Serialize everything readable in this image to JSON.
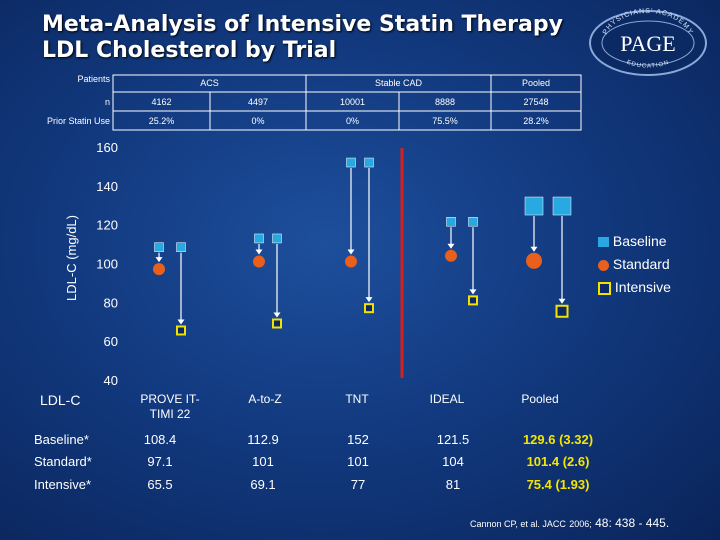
{
  "title_line1": "Meta-Analysis of Intensive Statin Therapy",
  "title_line2": "LDL Cholesterol by Trial",
  "logo": {
    "top_text": "PHYSICIANS' ACADEMY",
    "center_text": "PAGE",
    "bottom_text": "EDUCATION"
  },
  "top_table": {
    "header_label": "Patients",
    "group_acs": "ACS",
    "group_stable": "Stable CAD",
    "group_pooled": "Pooled",
    "n_label": "n",
    "n_values": [
      "4162",
      "4497",
      "10001",
      "8888",
      "27548"
    ],
    "prior_label": "Prior Statin Use",
    "prior_values": [
      "25.2%",
      "0%",
      "0%",
      "75.5%",
      "28.2%"
    ]
  },
  "chart_data": {
    "type": "scatter",
    "ylabel": "LDL-C (mg/dL)",
    "ylim": [
      40,
      160
    ],
    "yticks": [
      "160",
      "140",
      "120",
      "100",
      "80",
      "60",
      "40"
    ],
    "ytick_values": [
      160,
      140,
      120,
      100,
      80,
      60,
      40
    ],
    "categories": [
      "PROVE IT-TIMI 22",
      "A-to-Z",
      "TNT",
      "IDEAL",
      "Pooled"
    ],
    "category_labels": [
      "PROVE IT-\nTIMI 22",
      "A-to-Z",
      "TNT",
      "IDEAL",
      "Pooled"
    ],
    "series": [
      {
        "name": "Baseline",
        "values": [
          108.4,
          112.9,
          152,
          121.5,
          129.6
        ]
      },
      {
        "name": "Standard",
        "values": [
          97.1,
          101,
          101,
          104,
          101.4
        ]
      },
      {
        "name": "Intensive",
        "values": [
          65.5,
          69.1,
          77,
          81,
          75.4
        ]
      }
    ],
    "legend": [
      "Baseline",
      "Standard",
      "Intensive"
    ],
    "legend_position": "right"
  },
  "bottom_table": {
    "header": "LDL-C",
    "rows": [
      {
        "label": "Baseline*",
        "values": [
          "108.4",
          "112.9",
          "152",
          "121.5",
          "129.6  (3.32)"
        ]
      },
      {
        "label": "Standard*",
        "values": [
          "97.1",
          "101",
          "101",
          "104",
          "101.4 (2.6)"
        ]
      },
      {
        "label": "Intensive*",
        "values": [
          "65.5",
          "69.1",
          "77",
          "81",
          "75.4 (1.93)"
        ]
      }
    ]
  },
  "citation": {
    "main": "Cannon CP, et al. JACC",
    "year": "2006;",
    "ref": "48: 438 - 445."
  },
  "colors": {
    "baseline": "#29a9e1",
    "standard": "#e8601c",
    "intensive": "#f2e200",
    "divider": "#d42020",
    "yellow_text": "#f5e600"
  }
}
